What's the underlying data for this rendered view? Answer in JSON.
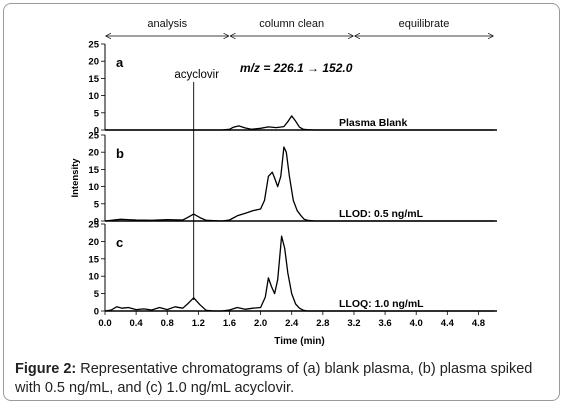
{
  "figure": {
    "caption_label": "Figure 2:",
    "caption_text": " Representative chromatograms of (a) blank plasma, (b) plasma spiked with 0.5 ng/mL, and (c) 1.0 ng/mL acyclovir."
  },
  "chart_data": {
    "type": "line",
    "xlabel": "Time (min)",
    "ylabel": "Intensity",
    "xlim": [
      0.0,
      5.0
    ],
    "ylim": [
      0,
      25
    ],
    "x_ticks": [
      "0.0",
      "0.4",
      "0.8",
      "1.2",
      "1.6",
      "2.0",
      "2.4",
      "2.8",
      "3.2",
      "3.6",
      "4.0",
      "4.4",
      "4.8"
    ],
    "y_ticks": [
      "0",
      "5",
      "10",
      "15",
      "20",
      "25"
    ],
    "phases": [
      {
        "label": "analysis",
        "start": 0.0,
        "end": 1.6
      },
      {
        "label": "column clean",
        "start": 1.6,
        "end": 3.2
      },
      {
        "label": "equilibrate",
        "start": 3.2,
        "end": 5.0
      }
    ],
    "annotations": {
      "analyte": "acyclovir",
      "analyte_rt": 1.14,
      "transition": "m/z = 226.1 → 152.0"
    },
    "panels": [
      {
        "letter": "a",
        "label": "Plasma Blank",
        "x": [
          0.0,
          1.0,
          1.5,
          1.6,
          1.65,
          1.72,
          1.8,
          1.88,
          2.0,
          2.1,
          2.2,
          2.3,
          2.35,
          2.4,
          2.45,
          2.5,
          2.55,
          2.6,
          2.7,
          3.0,
          5.0
        ],
        "y": [
          0.0,
          0.0,
          0.0,
          0.2,
          0.8,
          1.2,
          0.6,
          0.2,
          0.5,
          0.9,
          0.7,
          1.0,
          2.4,
          4.1,
          2.6,
          0.8,
          0.2,
          0.1,
          0.0,
          0.0,
          0.0
        ]
      },
      {
        "letter": "b",
        "label": "LLOD: 0.5 ng/mL",
        "x": [
          0.0,
          0.2,
          0.4,
          0.6,
          0.8,
          1.0,
          1.06,
          1.14,
          1.22,
          1.3,
          1.5,
          1.6,
          1.7,
          1.8,
          1.9,
          2.0,
          2.05,
          2.1,
          2.15,
          2.18,
          2.22,
          2.26,
          2.3,
          2.33,
          2.37,
          2.42,
          2.47,
          2.52,
          2.56,
          2.6,
          2.7,
          2.8,
          3.0,
          5.0
        ],
        "y": [
          0.0,
          0.5,
          0.3,
          0.2,
          0.4,
          0.3,
          1.0,
          2.0,
          1.0,
          0.2,
          0.0,
          0.3,
          1.5,
          2.2,
          3.0,
          3.5,
          6.0,
          13.0,
          14.2,
          12.5,
          10.0,
          13.0,
          21.5,
          20.0,
          13.0,
          6.0,
          3.0,
          1.5,
          0.5,
          0.2,
          0.0,
          0.0,
          0.0,
          0.0
        ]
      },
      {
        "letter": "c",
        "label": "LLOQ: 1.0 ng/mL",
        "x": [
          0.0,
          0.08,
          0.15,
          0.22,
          0.3,
          0.4,
          0.5,
          0.6,
          0.7,
          0.8,
          0.9,
          1.0,
          1.06,
          1.14,
          1.22,
          1.3,
          1.4,
          1.5,
          1.6,
          1.7,
          1.8,
          1.9,
          2.0,
          2.06,
          2.1,
          2.14,
          2.18,
          2.22,
          2.27,
          2.31,
          2.35,
          2.4,
          2.45,
          2.5,
          2.55,
          2.6,
          2.7,
          3.0,
          5.0
        ],
        "y": [
          0.0,
          0.3,
          1.2,
          0.8,
          1.0,
          0.4,
          0.6,
          0.3,
          1.0,
          0.4,
          1.2,
          0.8,
          2.0,
          3.8,
          1.8,
          0.2,
          0.0,
          0.0,
          0.3,
          1.0,
          0.5,
          0.8,
          1.0,
          4.0,
          9.5,
          7.0,
          5.0,
          9.0,
          21.5,
          18.0,
          11.0,
          5.0,
          2.0,
          0.8,
          0.2,
          0.0,
          0.0,
          0.0,
          0.0
        ]
      }
    ]
  }
}
